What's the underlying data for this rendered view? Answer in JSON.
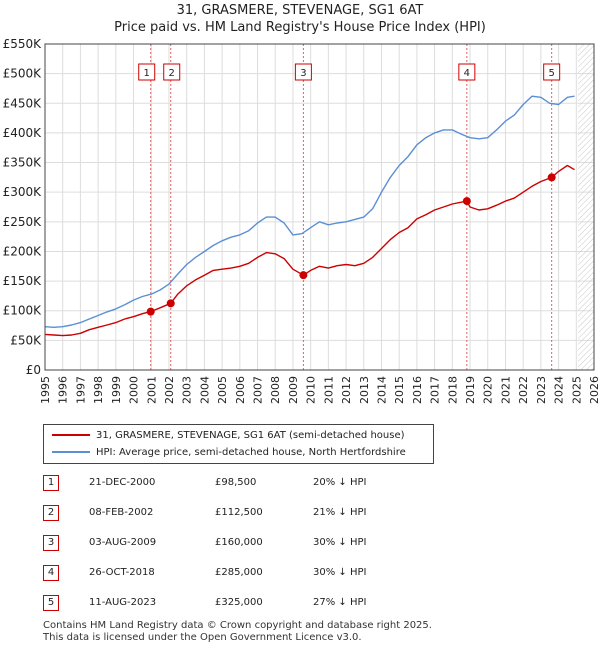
{
  "chart_data": {
    "type": "line",
    "title": "31, GRASMERE, STEVENAGE, SG1 6AT",
    "subtitle": "Price paid vs. HM Land Registry's House Price Index (HPI)",
    "xlim": [
      1995,
      2026
    ],
    "ylim": [
      0,
      550000
    ],
    "y_ticks": [
      0,
      50000,
      100000,
      150000,
      200000,
      250000,
      300000,
      350000,
      400000,
      450000,
      500000,
      550000
    ],
    "y_tick_labels": [
      "£0",
      "£50K",
      "£100K",
      "£150K",
      "£200K",
      "£250K",
      "£300K",
      "£350K",
      "£400K",
      "£450K",
      "£500K",
      "£550K"
    ],
    "x_ticks": [
      1995,
      1996,
      1997,
      1998,
      1999,
      2000,
      2001,
      2002,
      2003,
      2004,
      2005,
      2006,
      2007,
      2008,
      2009,
      2010,
      2011,
      2012,
      2013,
      2014,
      2015,
      2016,
      2017,
      2018,
      2019,
      2020,
      2021,
      2022,
      2023,
      2024,
      2025,
      2026
    ],
    "x_tick_labels": [
      "1995",
      "1996",
      "1997",
      "1998",
      "1999",
      "2000",
      "2001",
      "2002",
      "2003",
      "2004",
      "2005",
      "2006",
      "2007",
      "2008",
      "2009",
      "2010",
      "2011",
      "2012",
      "2013",
      "2014",
      "2015",
      "2016",
      "2017",
      "2018",
      "2019",
      "2020",
      "2021",
      "2022",
      "2023",
      "2024",
      "2025",
      "2026"
    ],
    "grid": true,
    "future_hatch_from": 2025.1,
    "series": [
      {
        "name": "31, GRASMERE, STEVENAGE, SG1 6AT (semi-detached house)",
        "color": "#cc0000",
        "x": [
          1995.0,
          1995.5,
          1996.0,
          1996.5,
          1997.0,
          1997.5,
          1998.0,
          1998.5,
          1999.0,
          1999.5,
          2000.0,
          2000.5,
          2000.97,
          2001.5,
          2002.1,
          2002.5,
          2003.0,
          2003.5,
          2004.0,
          2004.5,
          2005.0,
          2005.5,
          2006.0,
          2006.5,
          2007.0,
          2007.5,
          2008.0,
          2008.5,
          2009.0,
          2009.59,
          2010.0,
          2010.5,
          2011.0,
          2011.5,
          2012.0,
          2012.5,
          2013.0,
          2013.5,
          2014.0,
          2014.5,
          2015.0,
          2015.5,
          2016.0,
          2016.5,
          2017.0,
          2017.5,
          2018.0,
          2018.82,
          2019.0,
          2019.5,
          2020.0,
          2020.5,
          2021.0,
          2021.5,
          2022.0,
          2022.5,
          2023.0,
          2023.61,
          2024.0,
          2024.5,
          2024.9
        ],
        "values": [
          60000,
          59000,
          58000,
          59000,
          62000,
          68000,
          72000,
          76000,
          80000,
          86000,
          90000,
          95000,
          98500,
          105000,
          112500,
          128000,
          142000,
          152000,
          160000,
          168000,
          170000,
          172000,
          175000,
          180000,
          190000,
          198000,
          196000,
          188000,
          170000,
          160000,
          168000,
          175000,
          172000,
          176000,
          178000,
          176000,
          180000,
          190000,
          205000,
          220000,
          232000,
          240000,
          255000,
          262000,
          270000,
          275000,
          280000,
          285000,
          275000,
          270000,
          272000,
          278000,
          285000,
          290000,
          300000,
          310000,
          318000,
          325000,
          335000,
          345000,
          338000
        ]
      },
      {
        "name": "HPI: Average price, semi-detached house, North Hertfordshire",
        "color": "#5b8fd4",
        "x": [
          1995.0,
          1995.5,
          1996.0,
          1996.5,
          1997.0,
          1997.5,
          1998.0,
          1998.5,
          1999.0,
          1999.5,
          2000.0,
          2000.5,
          2001.0,
          2001.5,
          2002.0,
          2002.5,
          2003.0,
          2003.5,
          2004.0,
          2004.5,
          2005.0,
          2005.5,
          2006.0,
          2006.5,
          2007.0,
          2007.5,
          2008.0,
          2008.5,
          2009.0,
          2009.5,
          2010.0,
          2010.5,
          2011.0,
          2011.5,
          2012.0,
          2012.5,
          2013.0,
          2013.5,
          2014.0,
          2014.5,
          2015.0,
          2015.5,
          2016.0,
          2016.5,
          2017.0,
          2017.5,
          2018.0,
          2018.5,
          2019.0,
          2019.5,
          2020.0,
          2020.5,
          2021.0,
          2021.5,
          2022.0,
          2022.5,
          2023.0,
          2023.5,
          2024.0,
          2024.5,
          2024.9
        ],
        "values": [
          73000,
          72000,
          73000,
          76000,
          80000,
          86000,
          92000,
          98000,
          103000,
          110000,
          118000,
          124000,
          128000,
          135000,
          145000,
          162000,
          178000,
          190000,
          200000,
          210000,
          218000,
          224000,
          228000,
          235000,
          248000,
          258000,
          258000,
          248000,
          228000,
          230000,
          240000,
          250000,
          245000,
          248000,
          250000,
          254000,
          258000,
          272000,
          300000,
          325000,
          345000,
          360000,
          380000,
          392000,
          400000,
          405000,
          405000,
          398000,
          392000,
          390000,
          392000,
          405000,
          420000,
          430000,
          448000,
          462000,
          460000,
          450000,
          448000,
          460000,
          462000
        ]
      }
    ],
    "events": [
      {
        "n": "1",
        "x": 2000.97,
        "value": 98500,
        "date": "21-DEC-2000",
        "price": "£98,500",
        "hpi": "20% ↓ HPI"
      },
      {
        "n": "2",
        "x": 2002.1,
        "value": 112500,
        "date": "08-FEB-2002",
        "price": "£112,500",
        "hpi": "21% ↓ HPI"
      },
      {
        "n": "3",
        "x": 2009.59,
        "value": 160000,
        "date": "03-AUG-2009",
        "price": "£160,000",
        "hpi": "30% ↓ HPI"
      },
      {
        "n": "4",
        "x": 2018.82,
        "value": 285000,
        "date": "26-OCT-2018",
        "price": "£285,000",
        "hpi": "30% ↓ HPI"
      },
      {
        "n": "5",
        "x": 2023.61,
        "value": 325000,
        "date": "11-AUG-2023",
        "price": "£325,000",
        "hpi": "27% ↓ HPI"
      }
    ]
  },
  "legend": {
    "series1": "31, GRASMERE, STEVENAGE, SG1 6AT (semi-detached house)",
    "series2": "HPI: Average price, semi-detached house, North Hertfordshire"
  },
  "footer": {
    "line1": "Contains HM Land Registry data © Crown copyright and database right 2025.",
    "line2": "This data is licensed under the Open Government Licence v3.0."
  }
}
